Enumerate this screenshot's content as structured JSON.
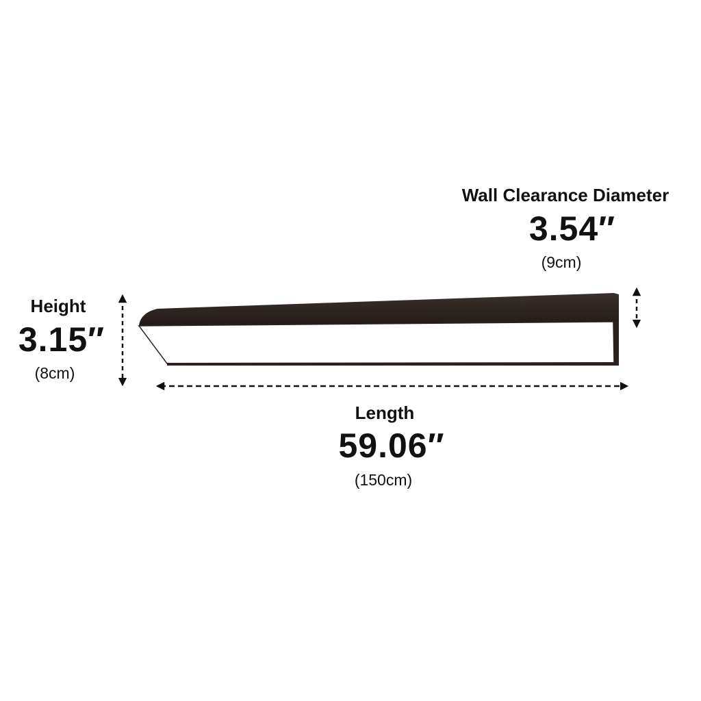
{
  "wall_clearance": {
    "label": "Wall Clearance Diameter",
    "value": "3.54″",
    "metric": "(9cm)"
  },
  "height": {
    "label": "Height",
    "value": "3.15″",
    "metric": "(8cm)"
  },
  "length": {
    "label": "Length",
    "value": "59.06″",
    "metric": "(150cm)"
  },
  "colors": {
    "fixture_body": "#2b221e",
    "diffuser": "#ffffff",
    "arrows": "#111111"
  }
}
